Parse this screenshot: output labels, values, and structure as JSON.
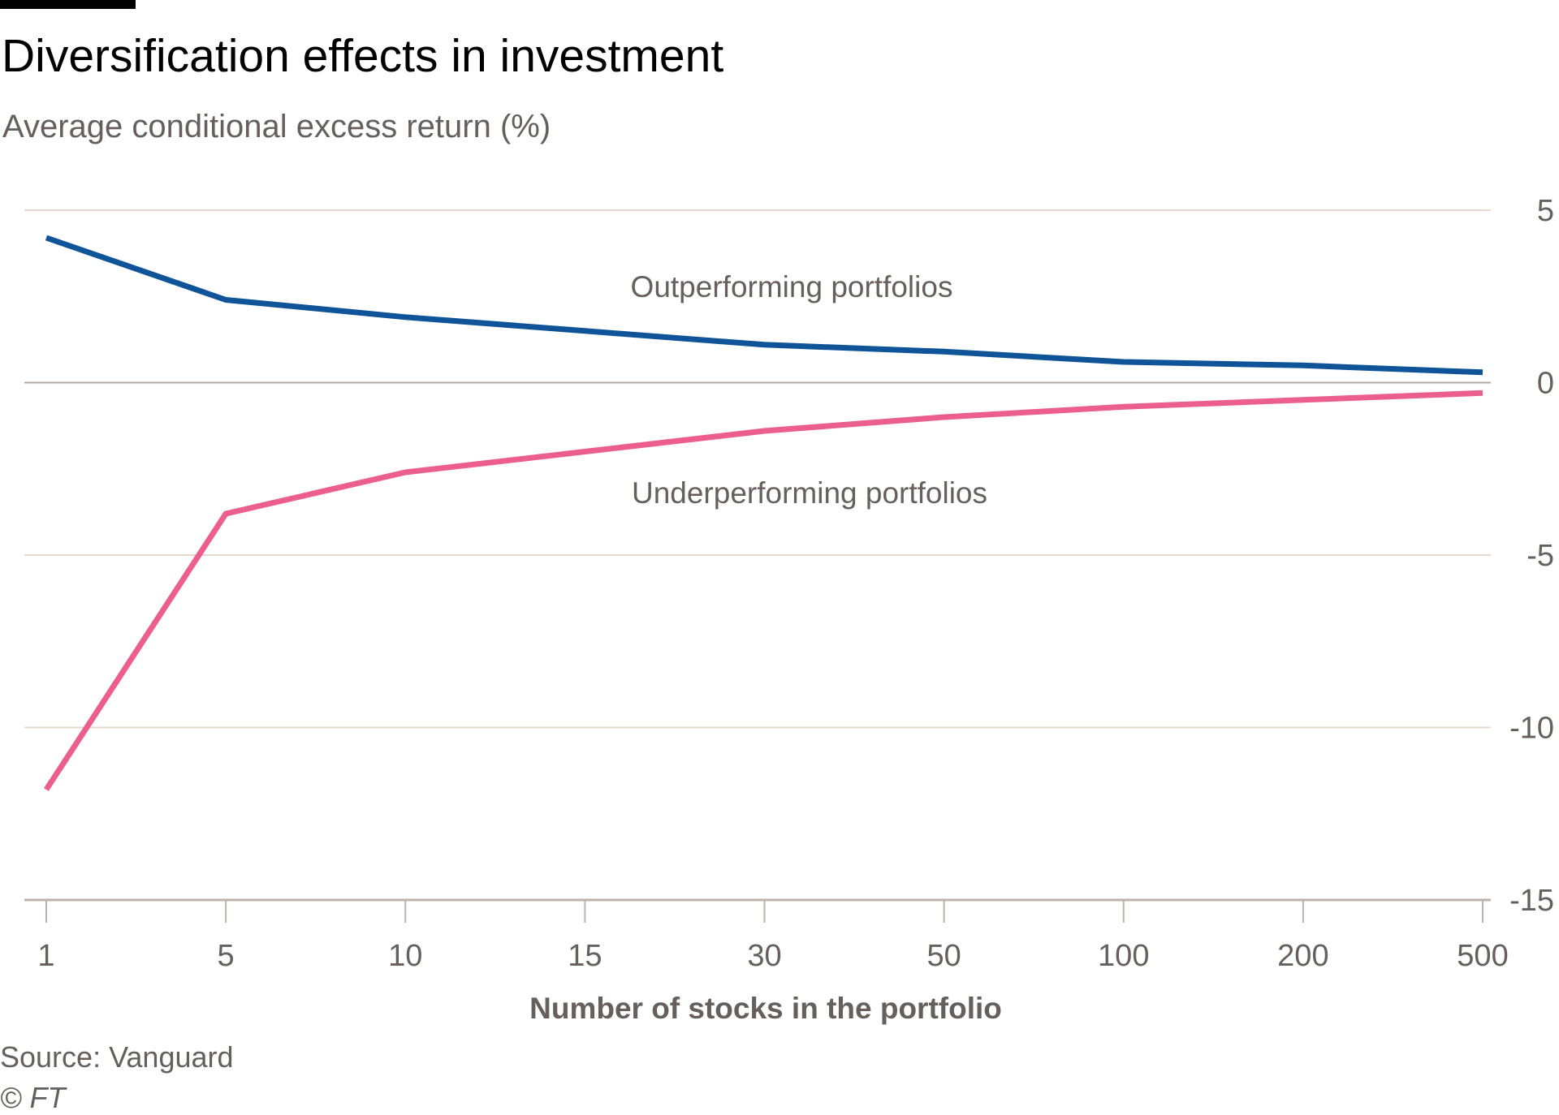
{
  "header": {
    "title": "Diversification effects in investment",
    "subtitle": "Average conditional excess return (%)"
  },
  "footer": {
    "source": "Source: Vanguard",
    "copyright": "© FT"
  },
  "colors": {
    "outperforming": "#0f5499",
    "underperforming": "#eb5e8d",
    "grid": "#e6d9ce",
    "zero_line": "#b3a9a0",
    "text": "#66605c"
  },
  "chart_data": {
    "type": "line",
    "title": "Diversification effects in investment",
    "subtitle": "Average conditional excess return (%)",
    "xlabel": "Number of stocks in the portfolio",
    "ylabel": "",
    "categories": [
      "1",
      "5",
      "10",
      "15",
      "30",
      "50",
      "100",
      "200",
      "500"
    ],
    "ylim": [
      -15,
      5
    ],
    "yticks": [
      5,
      0,
      -5,
      -10,
      -15
    ],
    "ytick_labels": [
      "5",
      "0",
      "-5",
      "-10",
      "-15"
    ],
    "y_axis_side": "right",
    "grid": true,
    "legend": "inline labels",
    "series": [
      {
        "name": "Outperforming portfolios",
        "values": [
          4.2,
          2.4,
          1.9,
          1.5,
          1.1,
          0.9,
          0.6,
          0.5,
          0.3
        ]
      },
      {
        "name": "Underperforming portfolios",
        "values": [
          -11.8,
          -3.8,
          -2.6,
          -2.0,
          -1.4,
          -1.0,
          -0.7,
          -0.5,
          -0.3
        ]
      }
    ]
  }
}
